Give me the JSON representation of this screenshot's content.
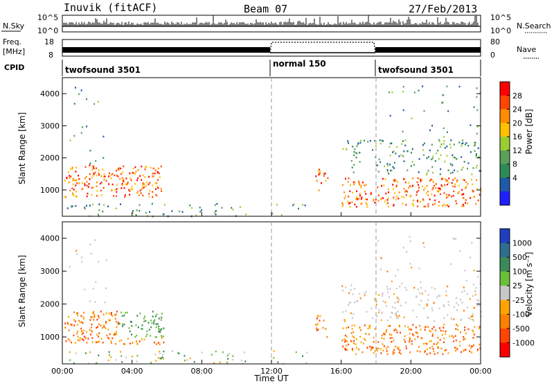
{
  "header": {
    "station": "Inuvik (fitACF)",
    "beam": "Beam 07",
    "date": "27/Feb/2013"
  },
  "nsky_panel": {
    "left_label": "N.Sky",
    "right_label": "N.Search",
    "left_ticks": [
      "10^5",
      "10^0"
    ],
    "right_ticks": [
      "10^5",
      "10^0"
    ]
  },
  "freq_panel": {
    "left_label_top": "Freq.",
    "left_label_bottom": "[MHz]",
    "right_label": "Nave",
    "left_ticks": [
      "18",
      "8"
    ],
    "right_ticks": [
      "80",
      "0"
    ]
  },
  "cpid": {
    "label": "CPID",
    "segments": [
      {
        "text": "twofsound 3501",
        "start_hour": 0
      },
      {
        "text": "normal 150",
        "start_hour": 12
      },
      {
        "text": "twofsound 3501",
        "start_hour": 18
      }
    ]
  },
  "x_axis": {
    "title": "Time UT",
    "ticks": [
      "00:00",
      "04:00",
      "08:00",
      "12:00",
      "16:00",
      "20:00",
      "00:00"
    ]
  },
  "power_panel": {
    "ylabel": "Slant Range [km]",
    "yticks": [
      "1000",
      "2000",
      "3000",
      "4000"
    ],
    "colorbar_label": "Power [dB]",
    "colorbar_ticks": [
      "4",
      "8",
      "12",
      "16",
      "20",
      "24",
      "28"
    ],
    "colors": [
      "#1f1fff",
      "#1e5aa8",
      "#2e8b57",
      "#5aa05a",
      "#9acd32",
      "#ffc000",
      "#ff8c00",
      "#ff4500",
      "#ff0000"
    ]
  },
  "velocity_panel": {
    "ylabel": "Slant Range [km]",
    "yticks": [
      "1000",
      "2000",
      "3000",
      "4000"
    ],
    "colorbar_label": "Velocity [m s⁻¹]",
    "colorbar_ticks": [
      "1000",
      "500",
      "100",
      "25",
      "-25",
      "-100",
      "-500",
      "-1000"
    ],
    "colors": [
      "#1f3fbf",
      "#2e6e8e",
      "#3a8a5a",
      "#6abf3a",
      "#c8c8c8",
      "#ffa500",
      "#ff7f00",
      "#ff4500",
      "#ff0000"
    ]
  },
  "chart_data": {
    "type": "heatmap",
    "title": "Inuvik (fitACF)",
    "xlabel": "Time UT",
    "ylabel": "Slant Range [km]",
    "xlim": [
      0,
      24
    ],
    "ylim": [
      180,
      4500
    ],
    "x_ticks_hours": [
      0,
      4,
      8,
      12,
      16,
      20,
      24
    ],
    "y_ticks_km": [
      1000,
      2000,
      3000,
      4000
    ],
    "power_colorbar_db": [
      4,
      8,
      12,
      16,
      20,
      24,
      28
    ],
    "velocity_colorbar_ms": [
      1000,
      500,
      100,
      25,
      -25,
      -100,
      -500,
      -1000
    ],
    "vertical_dashed_lines_hours": [
      12,
      18
    ]
  }
}
